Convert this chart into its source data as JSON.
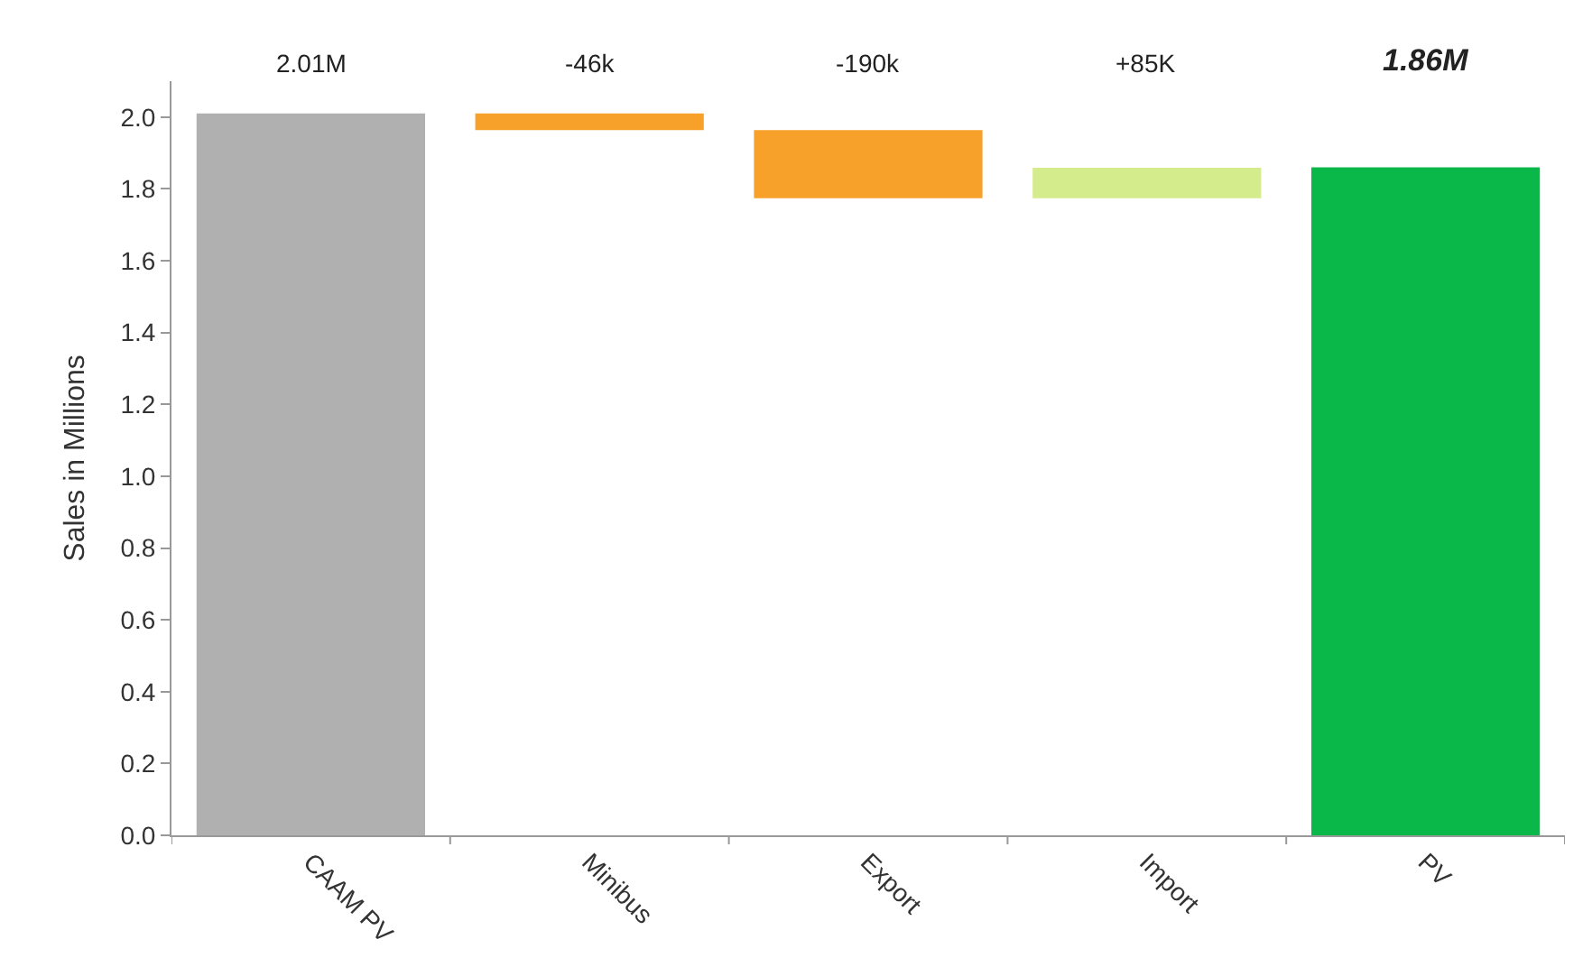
{
  "chart_data": {
    "type": "bar",
    "ylabel": "Sales in Millions",
    "categories": [
      "CAAM PV",
      "Minibus",
      "Export",
      "Import",
      "PV"
    ],
    "values": [
      2.01,
      -0.046,
      -0.19,
      0.085,
      1.86
    ],
    "base": [
      0,
      2.01,
      1.964,
      1.774,
      0
    ],
    "colors": [
      "#b0b0b0",
      "#f7a02a",
      "#f7a02a",
      "#d4ec8c",
      "#0ab84a"
    ],
    "annotations": [
      "2.01M",
      "-46k",
      "-190k",
      "+85K",
      "1.86M"
    ],
    "ylim": [
      0,
      2.1
    ],
    "yticks": [
      {
        "value": 0,
        "label": "0.0"
      },
      {
        "value": 0.2,
        "label": "0.2"
      },
      {
        "value": 0.4,
        "label": "0.4"
      },
      {
        "value": 0.6,
        "label": "0.6"
      },
      {
        "value": 0.8,
        "label": "0.8"
      },
      {
        "value": 1.0,
        "label": "1.0"
      },
      {
        "value": 1.2,
        "label": "1.2"
      },
      {
        "value": 1.4,
        "label": "1.4"
      },
      {
        "value": 1.6,
        "label": "1.6"
      },
      {
        "value": 1.8,
        "label": "1.8"
      },
      {
        "value": 2.0,
        "label": "2.0"
      }
    ],
    "legend": false
  }
}
